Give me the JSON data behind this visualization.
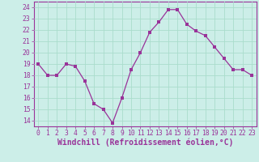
{
  "x": [
    0,
    1,
    2,
    3,
    4,
    5,
    6,
    7,
    8,
    9,
    10,
    11,
    12,
    13,
    14,
    15,
    16,
    17,
    18,
    19,
    20,
    21,
    22,
    23
  ],
  "y": [
    19,
    18,
    18,
    19,
    18.8,
    17.5,
    15.5,
    15,
    13.8,
    16,
    18.5,
    20,
    21.8,
    22.7,
    23.8,
    23.8,
    22.5,
    21.9,
    21.5,
    20.5,
    19.5,
    18.5,
    18.5,
    18
  ],
  "line_color": "#993399",
  "marker": "s",
  "marker_size": 2.2,
  "bg_color": "#cceee8",
  "grid_color": "#aaddcc",
  "xlabel": "Windchill (Refroidissement éolien,°C)",
  "ylim": [
    13.5,
    24.5
  ],
  "xlim": [
    -0.5,
    23.5
  ],
  "yticks": [
    14,
    15,
    16,
    17,
    18,
    19,
    20,
    21,
    22,
    23,
    24
  ],
  "xticks": [
    0,
    1,
    2,
    3,
    4,
    5,
    6,
    7,
    8,
    9,
    10,
    11,
    12,
    13,
    14,
    15,
    16,
    17,
    18,
    19,
    20,
    21,
    22,
    23
  ],
  "tick_label_fontsize": 5.8,
  "xlabel_fontsize": 7.0,
  "spine_color": "#993399"
}
